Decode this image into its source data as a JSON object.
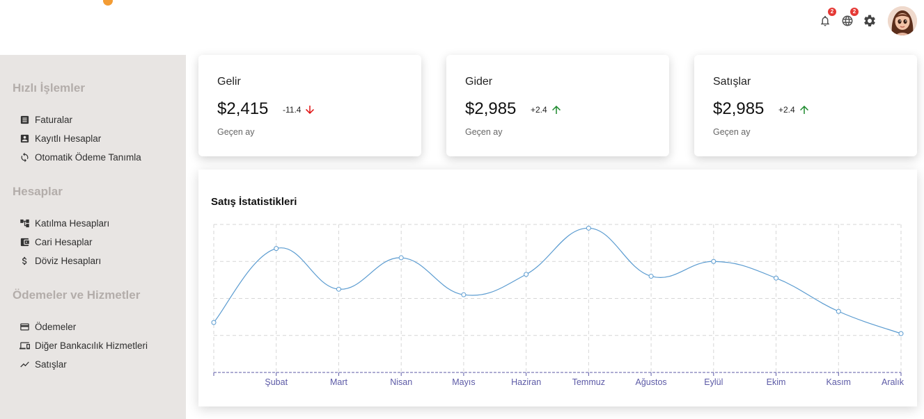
{
  "header": {
    "notifications_badge": "2",
    "language_badge": "2",
    "icons": [
      "bell-icon",
      "globe-icon",
      "gear-icon",
      "avatar"
    ]
  },
  "sidebar": {
    "sections": [
      {
        "title": "Hızlı İşlemler",
        "items": [
          {
            "label": "Faturalar",
            "icon": "invoice-icon"
          },
          {
            "label": "Kayıtlı Hesaplar",
            "icon": "account-box-icon"
          },
          {
            "label": "Otomatik Ödeme Tanımla",
            "icon": "refresh-icon"
          }
        ]
      },
      {
        "title": "Hesaplar",
        "items": [
          {
            "label": "Katılma Hesapları",
            "icon": "tree-icon"
          },
          {
            "label": "Cari Hesaplar",
            "icon": "wallet-icon"
          },
          {
            "label": "Döviz Hesapları",
            "icon": "dollar-icon"
          }
        ]
      },
      {
        "title": "Ödemeler ve Hizmetler",
        "items": [
          {
            "label": "Ödemeler",
            "icon": "credit-card-icon"
          },
          {
            "label": "Diğer Bankacılık Hizmetleri",
            "icon": "devices-icon"
          },
          {
            "label": "Satışlar",
            "icon": "trending-icon"
          }
        ]
      }
    ]
  },
  "cards": [
    {
      "title": "Gelir",
      "value": "$2,415",
      "delta": "-11.4",
      "direction": "down",
      "subtitle": "Geçen ay"
    },
    {
      "title": "Gider",
      "value": "$2,985",
      "delta": "+2.4",
      "direction": "up",
      "subtitle": "Geçen ay"
    },
    {
      "title": "Satışlar",
      "value": "$2,985",
      "delta": "+2.4",
      "direction": "up",
      "subtitle": "Geçen ay"
    }
  ],
  "colors": {
    "up": "#1e8a2e",
    "down": "#e01010",
    "line": "#5a9bd0",
    "axis": "#5c5aa6"
  },
  "chart_data": {
    "type": "line",
    "title": "Satış İstatistikleri",
    "categories": [
      "",
      "Şubat",
      "Mart",
      "Nisan",
      "Mayıs",
      "Haziran",
      "Temmuz",
      "Ağustos",
      "Eylül",
      "Ekim",
      "Kasım",
      "Aralık"
    ],
    "values": [
      1.35,
      3.35,
      2.25,
      3.1,
      2.1,
      2.65,
      3.9,
      2.6,
      3.0,
      2.55,
      1.65,
      1.05
    ],
    "ylim": [
      0,
      4
    ],
    "grid": true,
    "xlabel": "",
    "ylabel": ""
  }
}
